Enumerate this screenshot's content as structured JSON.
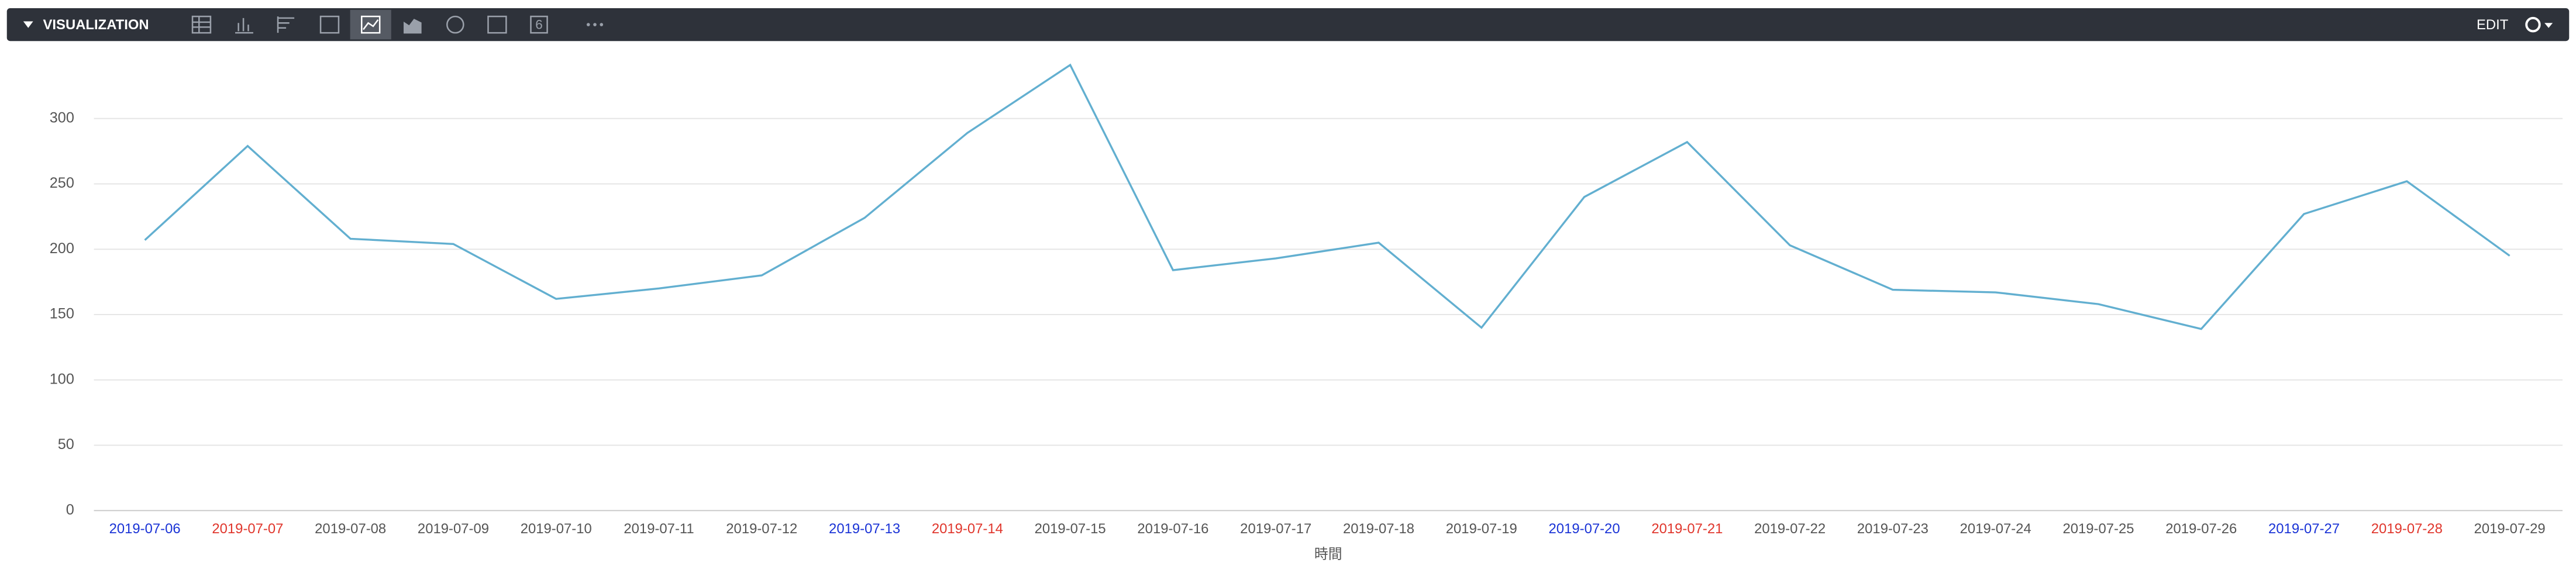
{
  "toolbar": {
    "title": "VISUALIZATION",
    "single_value_icon": "6",
    "edit": "EDIT"
  },
  "chart_data": {
    "type": "line",
    "x_label": "時間",
    "categories": [
      "2019-07-06",
      "2019-07-07",
      "2019-07-08",
      "2019-07-09",
      "2019-07-10",
      "2019-07-11",
      "2019-07-12",
      "2019-07-13",
      "2019-07-14",
      "2019-07-15",
      "2019-07-16",
      "2019-07-17",
      "2019-07-18",
      "2019-07-19",
      "2019-07-20",
      "2019-07-21",
      "2019-07-22",
      "2019-07-23",
      "2019-07-24",
      "2019-07-25",
      "2019-07-26",
      "2019-07-27",
      "2019-07-28",
      "2019-07-29"
    ],
    "category_colors": [
      "#1a33d6",
      "#e0362c",
      "#555",
      "#555",
      "#555",
      "#555",
      "#555",
      "#1a33d6",
      "#e0362c",
      "#555",
      "#555",
      "#555",
      "#555",
      "#555",
      "#1a33d6",
      "#e0362c",
      "#555",
      "#555",
      "#555",
      "#555",
      "#555",
      "#1a33d6",
      "#e0362c",
      "#555"
    ],
    "values": [
      207,
      279,
      208,
      204,
      162,
      170,
      180,
      224,
      289,
      341,
      184,
      193,
      205,
      140,
      240,
      282,
      203,
      169,
      167,
      158,
      139,
      227,
      252,
      195
    ],
    "color": "#62afd0",
    "ylim": [
      0,
      350
    ],
    "yticks": [
      0,
      50,
      100,
      150,
      200,
      250,
      300
    ],
    "grid": true
  }
}
